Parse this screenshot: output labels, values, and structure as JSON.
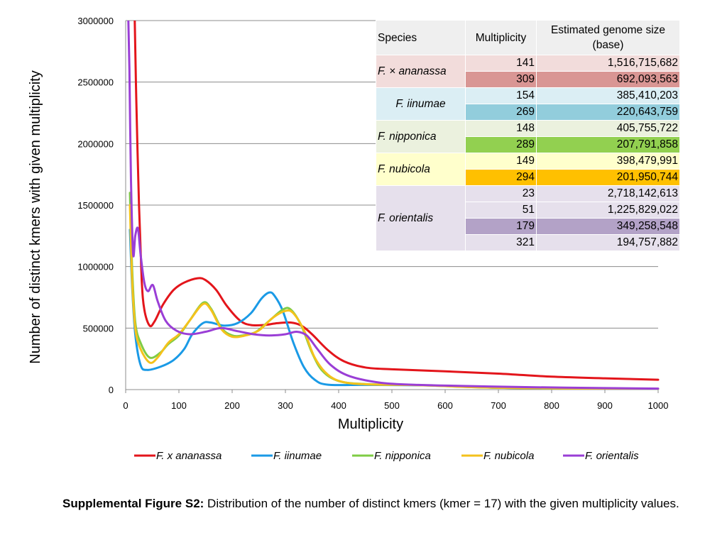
{
  "chart_data": {
    "type": "line",
    "xlabel": "Multiplicity",
    "ylabel": "Number of distinct kmers with given multiplicity",
    "xlim": [
      0,
      1000
    ],
    "ylim": [
      0,
      3000000
    ],
    "x_ticks": [
      "0",
      "100",
      "200",
      "300",
      "400",
      "500",
      "600",
      "700",
      "800",
      "900",
      "1000"
    ],
    "y_ticks": [
      "0",
      "500000",
      "1000000",
      "1500000",
      "2000000",
      "2500000",
      "3000000"
    ],
    "grid": "horizontal",
    "legend_position": "bottom",
    "series": [
      {
        "name": "F. x ananassa",
        "color": "#e3151b",
        "points": [
          [
            17,
            3000000
          ],
          [
            20,
            2350000
          ],
          [
            25,
            1500000
          ],
          [
            30,
            900000
          ],
          [
            35,
            650000
          ],
          [
            45,
            520000
          ],
          [
            55,
            560000
          ],
          [
            70,
            690000
          ],
          [
            90,
            810000
          ],
          [
            110,
            870000
          ],
          [
            135,
            905000
          ],
          [
            150,
            890000
          ],
          [
            170,
            810000
          ],
          [
            190,
            680000
          ],
          [
            215,
            560000
          ],
          [
            235,
            525000
          ],
          [
            260,
            525000
          ],
          [
            285,
            540000
          ],
          [
            310,
            545000
          ],
          [
            330,
            520000
          ],
          [
            350,
            450000
          ],
          [
            380,
            320000
          ],
          [
            410,
            230000
          ],
          [
            450,
            180000
          ],
          [
            500,
            165000
          ],
          [
            600,
            148000
          ],
          [
            700,
            130000
          ],
          [
            800,
            105000
          ],
          [
            900,
            92000
          ],
          [
            1000,
            80000
          ]
        ]
      },
      {
        "name": "F. iinumae",
        "color": "#1a9ae6",
        "points": [
          [
            8,
            1300000
          ],
          [
            12,
            850000
          ],
          [
            18,
            450000
          ],
          [
            28,
            200000
          ],
          [
            40,
            160000
          ],
          [
            65,
            185000
          ],
          [
            90,
            240000
          ],
          [
            110,
            330000
          ],
          [
            125,
            450000
          ],
          [
            145,
            540000
          ],
          [
            160,
            545000
          ],
          [
            185,
            520000
          ],
          [
            210,
            540000
          ],
          [
            235,
            620000
          ],
          [
            255,
            740000
          ],
          [
            270,
            790000
          ],
          [
            280,
            760000
          ],
          [
            295,
            640000
          ],
          [
            315,
            380000
          ],
          [
            335,
            180000
          ],
          [
            355,
            80000
          ],
          [
            380,
            40000
          ],
          [
            450,
            38000
          ],
          [
            550,
            35000
          ],
          [
            600,
            30000
          ],
          [
            700,
            15000
          ],
          [
            800,
            8000
          ],
          [
            900,
            5000
          ],
          [
            1000,
            4000
          ]
        ]
      },
      {
        "name": "F. nipponica",
        "color": "#7fcc44",
        "points": [
          [
            8,
            1600000
          ],
          [
            12,
            1000000
          ],
          [
            18,
            550000
          ],
          [
            28,
            380000
          ],
          [
            45,
            260000
          ],
          [
            65,
            300000
          ],
          [
            80,
            370000
          ],
          [
            100,
            440000
          ],
          [
            120,
            560000
          ],
          [
            145,
            705000
          ],
          [
            160,
            660000
          ],
          [
            180,
            500000
          ],
          [
            200,
            440000
          ],
          [
            220,
            440000
          ],
          [
            245,
            470000
          ],
          [
            270,
            560000
          ],
          [
            295,
            650000
          ],
          [
            310,
            650000
          ],
          [
            330,
            520000
          ],
          [
            350,
            300000
          ],
          [
            370,
            150000
          ],
          [
            400,
            70000
          ],
          [
            450,
            45000
          ],
          [
            550,
            37000
          ],
          [
            650,
            20000
          ],
          [
            750,
            12000
          ],
          [
            900,
            8000
          ],
          [
            1000,
            6000
          ]
        ]
      },
      {
        "name": "F. nubicola",
        "color": "#f4c21c",
        "points": [
          [
            8,
            1500000
          ],
          [
            12,
            900000
          ],
          [
            18,
            500000
          ],
          [
            28,
            330000
          ],
          [
            45,
            220000
          ],
          [
            60,
            260000
          ],
          [
            80,
            380000
          ],
          [
            100,
            450000
          ],
          [
            120,
            560000
          ],
          [
            145,
            695000
          ],
          [
            160,
            650000
          ],
          [
            180,
            490000
          ],
          [
            200,
            430000
          ],
          [
            225,
            440000
          ],
          [
            250,
            480000
          ],
          [
            275,
            580000
          ],
          [
            300,
            640000
          ],
          [
            315,
            620000
          ],
          [
            335,
            480000
          ],
          [
            355,
            260000
          ],
          [
            380,
            120000
          ],
          [
            410,
            60000
          ],
          [
            460,
            42000
          ],
          [
            550,
            36000
          ],
          [
            650,
            20000
          ],
          [
            750,
            12000
          ],
          [
            900,
            8000
          ],
          [
            1000,
            6000
          ]
        ]
      },
      {
        "name": "F. orientalis",
        "color": "#9a3ed6",
        "points": [
          [
            5,
            3000000
          ],
          [
            7,
            2600000
          ],
          [
            10,
            1700000
          ],
          [
            14,
            1100000
          ],
          [
            18,
            1250000
          ],
          [
            23,
            1310000
          ],
          [
            28,
            1100000
          ],
          [
            35,
            870000
          ],
          [
            42,
            800000
          ],
          [
            51,
            850000
          ],
          [
            60,
            720000
          ],
          [
            75,
            560000
          ],
          [
            95,
            480000
          ],
          [
            120,
            450000
          ],
          [
            150,
            470000
          ],
          [
            179,
            500000
          ],
          [
            210,
            475000
          ],
          [
            240,
            450000
          ],
          [
            270,
            440000
          ],
          [
            300,
            450000
          ],
          [
            321,
            470000
          ],
          [
            340,
            440000
          ],
          [
            360,
            330000
          ],
          [
            385,
            200000
          ],
          [
            420,
            110000
          ],
          [
            480,
            55000
          ],
          [
            550,
            38000
          ],
          [
            650,
            28000
          ],
          [
            750,
            20000
          ],
          [
            900,
            12000
          ],
          [
            1000,
            8000
          ]
        ]
      }
    ]
  },
  "table": {
    "headers": {
      "species": "Species",
      "multiplicity": "Multiplicity",
      "genome_size": "Estimated genome size (base)"
    },
    "groups": [
      {
        "species": "F. × ananassa",
        "rows": [
          {
            "multiplicity": "141",
            "genome_size": "1,516,715,682",
            "color": "#f2dcdb"
          },
          {
            "multiplicity": "309",
            "genome_size": "692,093,563",
            "color": "#d99694"
          }
        ]
      },
      {
        "species": "F. iinumae",
        "rows": [
          {
            "multiplicity": "154",
            "genome_size": "385,410,203",
            "color": "#dbeef4"
          },
          {
            "multiplicity": "269",
            "genome_size": "220,643,759",
            "color": "#92cddc"
          }
        ]
      },
      {
        "species": "F. nipponica",
        "rows": [
          {
            "multiplicity": "148",
            "genome_size": "405,755,722",
            "color": "#ebf1de"
          },
          {
            "multiplicity": "289",
            "genome_size": "207,791,858",
            "color": "#92d050"
          }
        ]
      },
      {
        "species": "F. nubicola",
        "rows": [
          {
            "multiplicity": "149",
            "genome_size": "398,479,991",
            "color": "#ffffcc"
          },
          {
            "multiplicity": "294",
            "genome_size": "201,950,744",
            "color": "#ffc000"
          }
        ]
      },
      {
        "species": "F. orientalis",
        "rows": [
          {
            "multiplicity": "23",
            "genome_size": "2,718,142,613",
            "color": "#e6e0ec"
          },
          {
            "multiplicity": "51",
            "genome_size": "1,225,829,022",
            "color": "#e6e0ec"
          },
          {
            "multiplicity": "179",
            "genome_size": "349,258,548",
            "color": "#b3a2c7"
          },
          {
            "multiplicity": "321",
            "genome_size": "194,757,882",
            "color": "#e6e0ec"
          }
        ]
      }
    ]
  },
  "caption": {
    "label": "Supplemental Figure S2:",
    "text": " Distribution of the number of distinct kmers (kmer = 17) with the given multiplicity values."
  }
}
